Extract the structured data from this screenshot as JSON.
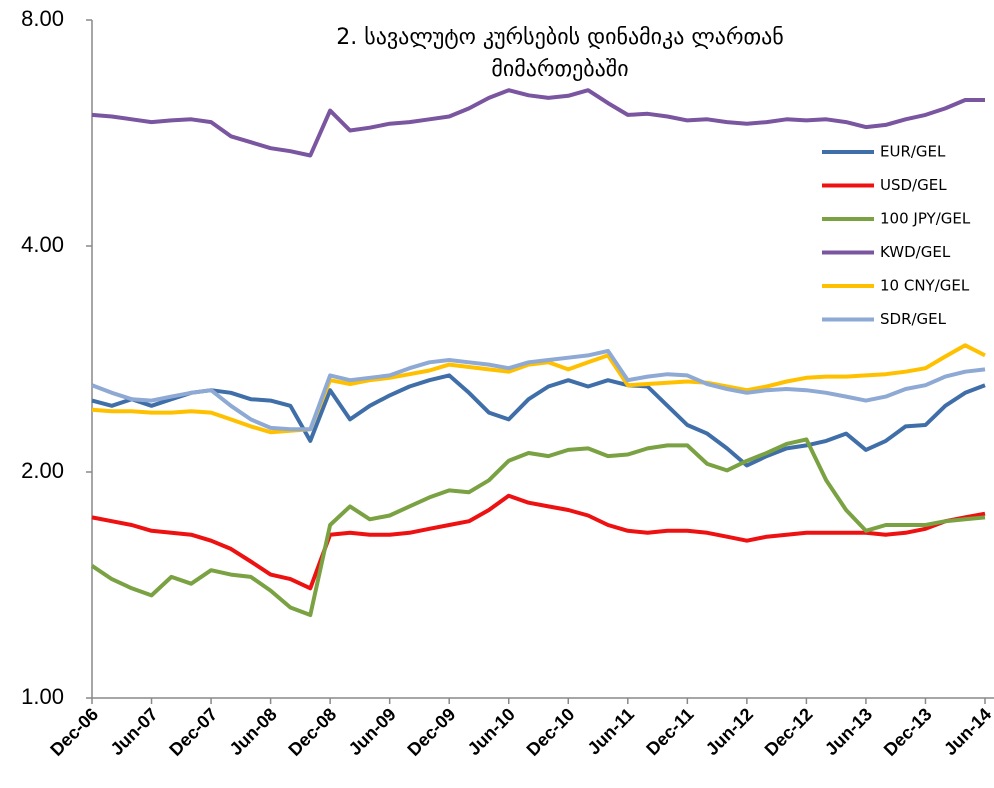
{
  "chart_data": {
    "type": "line",
    "title_lines": [
      "2.  სავალუტო კურსების დინამიკა   ლართან",
      "მიმართებაში"
    ],
    "categories": [
      "Dec-06",
      null,
      null,
      "Jun-07",
      null,
      null,
      "Dec-07",
      null,
      null,
      "Jun-08",
      null,
      null,
      "Dec-08",
      null,
      null,
      "Jun-09",
      null,
      null,
      "Dec-09",
      null,
      null,
      "Jun-10",
      null,
      null,
      "Dec-10",
      null,
      null,
      "Jun-11",
      null,
      null,
      "Dec-11",
      null,
      null,
      "Jun-12",
      null,
      null,
      "Dec-12",
      null,
      null,
      "Jun-13",
      null,
      null,
      "Dec-13",
      null,
      null,
      "Jun-14"
    ],
    "ylim": [
      1,
      8
    ],
    "log_scale": true,
    "yticks": [
      {
        "value": 1,
        "label": "1.00"
      },
      {
        "value": 2,
        "label": "2.00"
      },
      {
        "value": 4,
        "label": "4.00"
      },
      {
        "value": 8,
        "label": "8.00"
      }
    ],
    "grid": false,
    "legend": "upper right",
    "series": [
      {
        "name": "EUR/GEL",
        "color": "#3f6ea8",
        "values": [
          2.49,
          2.45,
          2.5,
          2.45,
          2.5,
          2.55,
          2.57,
          2.55,
          2.5,
          2.49,
          2.45,
          2.2,
          2.57,
          2.35,
          2.45,
          2.53,
          2.6,
          2.65,
          2.69,
          2.55,
          2.4,
          2.35,
          2.5,
          2.6,
          2.65,
          2.6,
          2.65,
          2.61,
          2.6,
          2.45,
          2.31,
          2.25,
          2.15,
          2.04,
          2.1,
          2.15,
          2.17,
          2.2,
          2.25,
          2.14,
          2.2,
          2.3,
          2.31,
          2.45,
          2.55,
          2.61
        ]
      },
      {
        "name": "USD/GEL",
        "color": "#ee1111",
        "values": [
          1.74,
          1.72,
          1.7,
          1.67,
          1.66,
          1.65,
          1.62,
          1.58,
          1.52,
          1.46,
          1.44,
          1.4,
          1.65,
          1.66,
          1.65,
          1.65,
          1.66,
          1.68,
          1.7,
          1.72,
          1.78,
          1.86,
          1.82,
          1.8,
          1.78,
          1.75,
          1.7,
          1.67,
          1.66,
          1.67,
          1.67,
          1.66,
          1.64,
          1.62,
          1.64,
          1.65,
          1.66,
          1.66,
          1.66,
          1.66,
          1.65,
          1.66,
          1.68,
          1.72,
          1.74,
          1.76
        ]
      },
      {
        "name": "100 JPY/GEL",
        "color": "#7aa142",
        "values": [
          1.5,
          1.44,
          1.4,
          1.37,
          1.45,
          1.42,
          1.48,
          1.46,
          1.45,
          1.39,
          1.32,
          1.29,
          1.7,
          1.8,
          1.73,
          1.75,
          1.8,
          1.85,
          1.89,
          1.88,
          1.95,
          2.07,
          2.12,
          2.1,
          2.14,
          2.15,
          2.1,
          2.11,
          2.15,
          2.17,
          2.17,
          2.05,
          2.01,
          2.07,
          2.12,
          2.18,
          2.21,
          1.95,
          1.78,
          1.67,
          1.7,
          1.7,
          1.7,
          1.72,
          1.73,
          1.74
        ]
      },
      {
        "name": "KWD/GEL",
        "color": "#7a55a0",
        "values": [
          5.98,
          5.95,
          5.9,
          5.85,
          5.88,
          5.9,
          5.85,
          5.6,
          5.5,
          5.4,
          5.35,
          5.28,
          6.06,
          5.7,
          5.75,
          5.82,
          5.85,
          5.9,
          5.95,
          6.1,
          6.3,
          6.45,
          6.35,
          6.3,
          6.34,
          6.45,
          6.2,
          5.98,
          6.0,
          5.95,
          5.88,
          5.9,
          5.85,
          5.82,
          5.85,
          5.9,
          5.88,
          5.9,
          5.85,
          5.76,
          5.8,
          5.9,
          5.98,
          6.1,
          6.26,
          6.26
        ]
      },
      {
        "name": "10 CNY/GEL",
        "color": "#ffc000",
        "values": [
          2.42,
          2.41,
          2.41,
          2.4,
          2.4,
          2.41,
          2.4,
          2.35,
          2.3,
          2.26,
          2.27,
          2.28,
          2.65,
          2.62,
          2.65,
          2.67,
          2.7,
          2.73,
          2.78,
          2.76,
          2.74,
          2.72,
          2.78,
          2.8,
          2.74,
          2.8,
          2.86,
          2.61,
          2.62,
          2.63,
          2.64,
          2.63,
          2.6,
          2.57,
          2.6,
          2.64,
          2.67,
          2.68,
          2.68,
          2.69,
          2.7,
          2.72,
          2.75,
          2.85,
          2.95,
          2.86
        ]
      },
      {
        "name": "SDR/GEL",
        "color": "#8ea9d4",
        "values": [
          2.61,
          2.55,
          2.5,
          2.49,
          2.52,
          2.55,
          2.57,
          2.45,
          2.35,
          2.29,
          2.28,
          2.28,
          2.69,
          2.65,
          2.67,
          2.69,
          2.75,
          2.8,
          2.82,
          2.8,
          2.78,
          2.75,
          2.8,
          2.82,
          2.84,
          2.86,
          2.9,
          2.65,
          2.68,
          2.7,
          2.69,
          2.62,
          2.58,
          2.55,
          2.57,
          2.58,
          2.57,
          2.55,
          2.52,
          2.49,
          2.52,
          2.58,
          2.61,
          2.68,
          2.72,
          2.74
        ]
      }
    ]
  }
}
